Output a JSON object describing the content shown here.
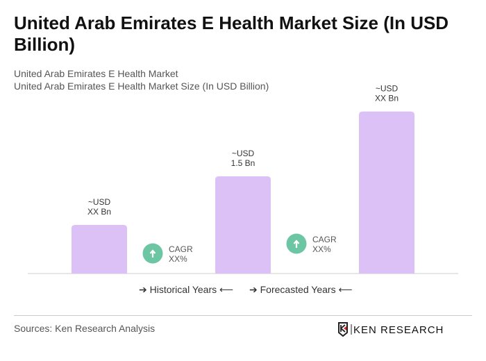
{
  "title": "United Arab Emirates E Health Market Size (In USD Billion)",
  "subtitle1": "United Arab Emirates E Health Market",
  "subtitle2": "United Arab Emirates E Health Market Size (In USD Billion)",
  "chart_data": {
    "type": "bar",
    "categories": [
      "",
      "",
      ""
    ],
    "values": [
      0.75,
      1.5,
      2.5
    ],
    "data_labels": [
      [
        "~USD",
        "XX Bn"
      ],
      [
        "~USD",
        "1.5 Bn"
      ],
      [
        "~USD",
        "XX Bn"
      ]
    ],
    "bar_color": "#dcc1f7",
    "annotations": [
      {
        "text": [
          "CAGR",
          "XX%"
        ],
        "icon": "arrow-up-circle-icon",
        "color": "#6cc6a3"
      },
      {
        "text": [
          "CAGR",
          "XX%"
        ],
        "icon": "arrow-up-circle-icon",
        "color": "#6cc6a3"
      }
    ],
    "grid": false
  },
  "legend": {
    "historical": "Historical Years",
    "forecasted": "Forecasted Years"
  },
  "sources": "Sources: Ken Research Analysis",
  "logo": "KEN RESEARCH"
}
